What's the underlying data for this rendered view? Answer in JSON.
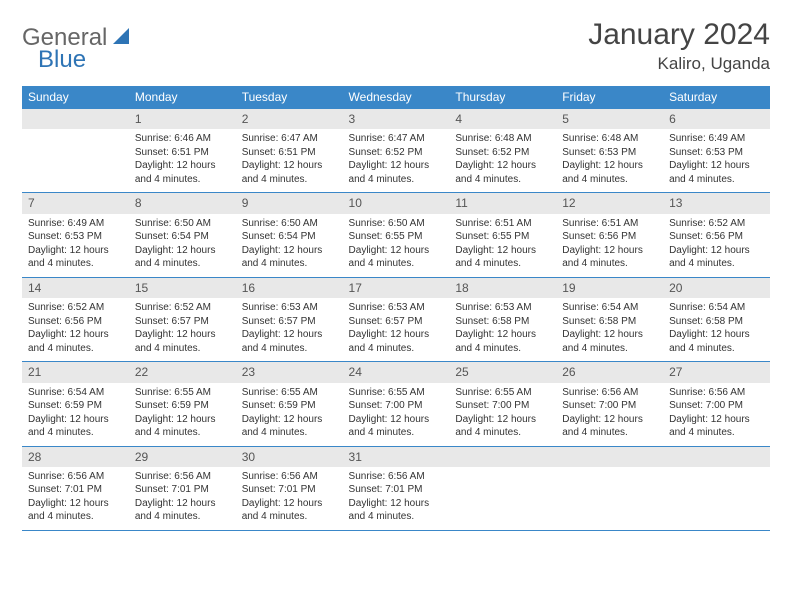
{
  "brand": {
    "general": "General",
    "blue": "Blue"
  },
  "header": {
    "month_title": "January 2024",
    "location": "Kaliro, Uganda"
  },
  "style": {
    "header_bg": "#3a87c8",
    "header_fg": "#ffffff",
    "daynum_bg": "#e8e8e8",
    "border_color": "#3a87c8",
    "title_fontsize": 30,
    "location_fontsize": 17,
    "day_header_fontsize": 12,
    "daynum_fontsize": 12,
    "content_fontsize": 10
  },
  "day_headers": [
    "Sunday",
    "Monday",
    "Tuesday",
    "Wednesday",
    "Thursday",
    "Friday",
    "Saturday"
  ],
  "weeks": [
    [
      {
        "day": "",
        "lines": []
      },
      {
        "day": "1",
        "lines": [
          "Sunrise: 6:46 AM",
          "Sunset: 6:51 PM",
          "Daylight: 12 hours",
          "and 4 minutes."
        ]
      },
      {
        "day": "2",
        "lines": [
          "Sunrise: 6:47 AM",
          "Sunset: 6:51 PM",
          "Daylight: 12 hours",
          "and 4 minutes."
        ]
      },
      {
        "day": "3",
        "lines": [
          "Sunrise: 6:47 AM",
          "Sunset: 6:52 PM",
          "Daylight: 12 hours",
          "and 4 minutes."
        ]
      },
      {
        "day": "4",
        "lines": [
          "Sunrise: 6:48 AM",
          "Sunset: 6:52 PM",
          "Daylight: 12 hours",
          "and 4 minutes."
        ]
      },
      {
        "day": "5",
        "lines": [
          "Sunrise: 6:48 AM",
          "Sunset: 6:53 PM",
          "Daylight: 12 hours",
          "and 4 minutes."
        ]
      },
      {
        "day": "6",
        "lines": [
          "Sunrise: 6:49 AM",
          "Sunset: 6:53 PM",
          "Daylight: 12 hours",
          "and 4 minutes."
        ]
      }
    ],
    [
      {
        "day": "7",
        "lines": [
          "Sunrise: 6:49 AM",
          "Sunset: 6:53 PM",
          "Daylight: 12 hours",
          "and 4 minutes."
        ]
      },
      {
        "day": "8",
        "lines": [
          "Sunrise: 6:50 AM",
          "Sunset: 6:54 PM",
          "Daylight: 12 hours",
          "and 4 minutes."
        ]
      },
      {
        "day": "9",
        "lines": [
          "Sunrise: 6:50 AM",
          "Sunset: 6:54 PM",
          "Daylight: 12 hours",
          "and 4 minutes."
        ]
      },
      {
        "day": "10",
        "lines": [
          "Sunrise: 6:50 AM",
          "Sunset: 6:55 PM",
          "Daylight: 12 hours",
          "and 4 minutes."
        ]
      },
      {
        "day": "11",
        "lines": [
          "Sunrise: 6:51 AM",
          "Sunset: 6:55 PM",
          "Daylight: 12 hours",
          "and 4 minutes."
        ]
      },
      {
        "day": "12",
        "lines": [
          "Sunrise: 6:51 AM",
          "Sunset: 6:56 PM",
          "Daylight: 12 hours",
          "and 4 minutes."
        ]
      },
      {
        "day": "13",
        "lines": [
          "Sunrise: 6:52 AM",
          "Sunset: 6:56 PM",
          "Daylight: 12 hours",
          "and 4 minutes."
        ]
      }
    ],
    [
      {
        "day": "14",
        "lines": [
          "Sunrise: 6:52 AM",
          "Sunset: 6:56 PM",
          "Daylight: 12 hours",
          "and 4 minutes."
        ]
      },
      {
        "day": "15",
        "lines": [
          "Sunrise: 6:52 AM",
          "Sunset: 6:57 PM",
          "Daylight: 12 hours",
          "and 4 minutes."
        ]
      },
      {
        "day": "16",
        "lines": [
          "Sunrise: 6:53 AM",
          "Sunset: 6:57 PM",
          "Daylight: 12 hours",
          "and 4 minutes."
        ]
      },
      {
        "day": "17",
        "lines": [
          "Sunrise: 6:53 AM",
          "Sunset: 6:57 PM",
          "Daylight: 12 hours",
          "and 4 minutes."
        ]
      },
      {
        "day": "18",
        "lines": [
          "Sunrise: 6:53 AM",
          "Sunset: 6:58 PM",
          "Daylight: 12 hours",
          "and 4 minutes."
        ]
      },
      {
        "day": "19",
        "lines": [
          "Sunrise: 6:54 AM",
          "Sunset: 6:58 PM",
          "Daylight: 12 hours",
          "and 4 minutes."
        ]
      },
      {
        "day": "20",
        "lines": [
          "Sunrise: 6:54 AM",
          "Sunset: 6:58 PM",
          "Daylight: 12 hours",
          "and 4 minutes."
        ]
      }
    ],
    [
      {
        "day": "21",
        "lines": [
          "Sunrise: 6:54 AM",
          "Sunset: 6:59 PM",
          "Daylight: 12 hours",
          "and 4 minutes."
        ]
      },
      {
        "day": "22",
        "lines": [
          "Sunrise: 6:55 AM",
          "Sunset: 6:59 PM",
          "Daylight: 12 hours",
          "and 4 minutes."
        ]
      },
      {
        "day": "23",
        "lines": [
          "Sunrise: 6:55 AM",
          "Sunset: 6:59 PM",
          "Daylight: 12 hours",
          "and 4 minutes."
        ]
      },
      {
        "day": "24",
        "lines": [
          "Sunrise: 6:55 AM",
          "Sunset: 7:00 PM",
          "Daylight: 12 hours",
          "and 4 minutes."
        ]
      },
      {
        "day": "25",
        "lines": [
          "Sunrise: 6:55 AM",
          "Sunset: 7:00 PM",
          "Daylight: 12 hours",
          "and 4 minutes."
        ]
      },
      {
        "day": "26",
        "lines": [
          "Sunrise: 6:56 AM",
          "Sunset: 7:00 PM",
          "Daylight: 12 hours",
          "and 4 minutes."
        ]
      },
      {
        "day": "27",
        "lines": [
          "Sunrise: 6:56 AM",
          "Sunset: 7:00 PM",
          "Daylight: 12 hours",
          "and 4 minutes."
        ]
      }
    ],
    [
      {
        "day": "28",
        "lines": [
          "Sunrise: 6:56 AM",
          "Sunset: 7:01 PM",
          "Daylight: 12 hours",
          "and 4 minutes."
        ]
      },
      {
        "day": "29",
        "lines": [
          "Sunrise: 6:56 AM",
          "Sunset: 7:01 PM",
          "Daylight: 12 hours",
          "and 4 minutes."
        ]
      },
      {
        "day": "30",
        "lines": [
          "Sunrise: 6:56 AM",
          "Sunset: 7:01 PM",
          "Daylight: 12 hours",
          "and 4 minutes."
        ]
      },
      {
        "day": "31",
        "lines": [
          "Sunrise: 6:56 AM",
          "Sunset: 7:01 PM",
          "Daylight: 12 hours",
          "and 4 minutes."
        ]
      },
      {
        "day": "",
        "lines": []
      },
      {
        "day": "",
        "lines": []
      },
      {
        "day": "",
        "lines": []
      }
    ]
  ]
}
